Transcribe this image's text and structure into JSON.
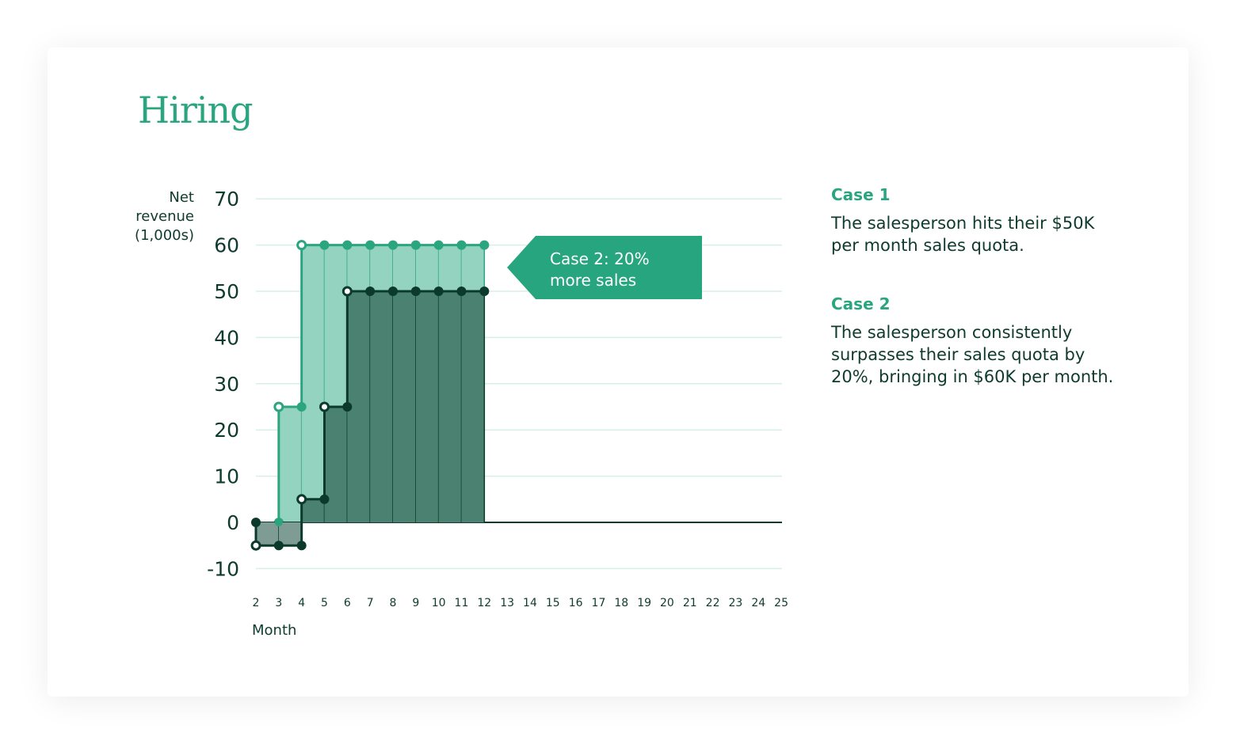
{
  "title": "Hiring",
  "colors": {
    "case1_line": "#0b3a2c",
    "case1_fill": "#4a8170",
    "negative_fill": "#7f9c94",
    "case2_line": "#2aa57f",
    "case2_fill": "#94d3bf",
    "grid": "#d8efe7",
    "accent": "#27a57e"
  },
  "chart_data": {
    "type": "area",
    "ylabel": "Net revenue (1,000s)",
    "xlabel": "Month",
    "ylim": [
      -10,
      70
    ],
    "yticks": [
      70,
      60,
      50,
      40,
      30,
      20,
      10,
      0,
      -10
    ],
    "xticks": [
      2,
      3,
      4,
      5,
      6,
      7,
      8,
      9,
      10,
      11,
      12,
      13,
      14,
      15,
      16,
      17,
      18,
      19,
      20,
      21,
      22,
      23,
      24,
      25
    ],
    "grid": true,
    "step": true,
    "series": [
      {
        "key": "case2",
        "points": [
          {
            "month": 3,
            "value": 0,
            "open": false
          },
          {
            "month": 3,
            "value": 25,
            "open": true
          },
          {
            "month": 4,
            "value": 25,
            "open": false
          },
          {
            "month": 4,
            "value": 60,
            "open": true
          },
          {
            "month": 5,
            "value": 60,
            "open": false
          },
          {
            "month": 6,
            "value": 60,
            "open": false
          },
          {
            "month": 7,
            "value": 60,
            "open": false
          },
          {
            "month": 8,
            "value": 60,
            "open": false
          },
          {
            "month": 9,
            "value": 60,
            "open": false
          },
          {
            "month": 10,
            "value": 60,
            "open": false
          },
          {
            "month": 11,
            "value": 60,
            "open": false
          },
          {
            "month": 12,
            "value": 60,
            "open": false
          }
        ]
      },
      {
        "key": "case1",
        "points": [
          {
            "month": 2,
            "value": 0,
            "open": false
          },
          {
            "month": 2,
            "value": -5,
            "open": true
          },
          {
            "month": 3,
            "value": -5,
            "open": false
          },
          {
            "month": 4,
            "value": -5,
            "open": false
          },
          {
            "month": 4,
            "value": 5,
            "open": true
          },
          {
            "month": 5,
            "value": 5,
            "open": false
          },
          {
            "month": 5,
            "value": 25,
            "open": true
          },
          {
            "month": 6,
            "value": 25,
            "open": false
          },
          {
            "month": 6,
            "value": 50,
            "open": true
          },
          {
            "month": 7,
            "value": 50,
            "open": false
          },
          {
            "month": 8,
            "value": 50,
            "open": false
          },
          {
            "month": 9,
            "value": 50,
            "open": false
          },
          {
            "month": 10,
            "value": 50,
            "open": false
          },
          {
            "month": 11,
            "value": 50,
            "open": false
          },
          {
            "month": 12,
            "value": 50,
            "open": false
          }
        ]
      }
    ],
    "annotation": "Case 2: 20% more sales"
  },
  "legend": [
    {
      "heading": "Case 1",
      "text": "The salesperson hits their $50K per month sales quota."
    },
    {
      "heading": "Case 2",
      "text": "The salesperson consistently surpasses their sales quota by 20%, bringing in $60K per month."
    }
  ]
}
